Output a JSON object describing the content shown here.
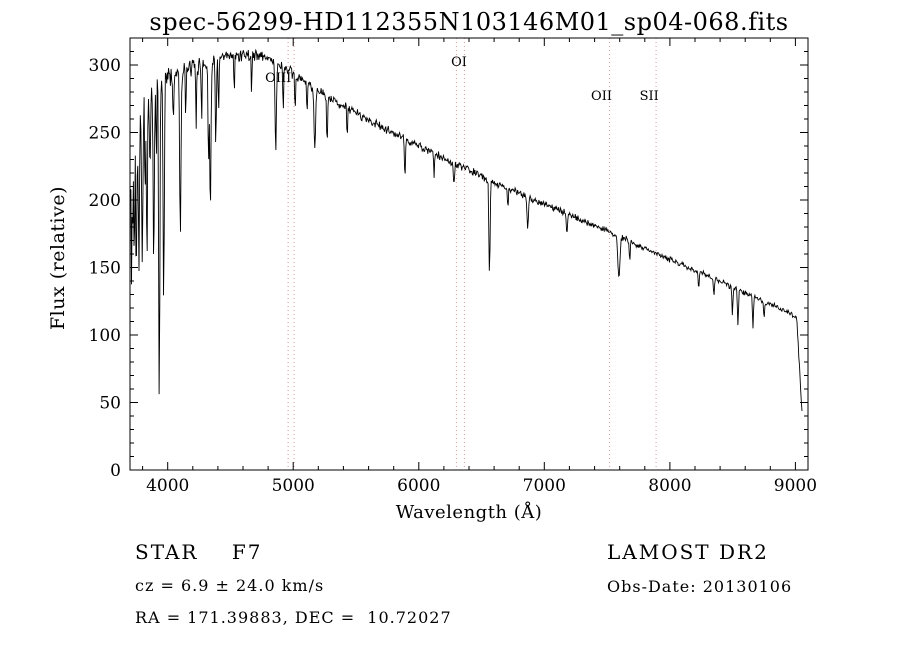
{
  "page": {
    "background": "#ffffff"
  },
  "chart_data": {
    "type": "line",
    "title": "spec-56299-HD112355N103146M01_sp04-068.fits",
    "xlabel": "Wavelength (Å)",
    "ylabel": "Flux (relative)",
    "series_name": "flux",
    "xlim": [
      3700,
      9100
    ],
    "ylim": [
      0,
      320
    ],
    "xticks": [
      4000,
      5000,
      6000,
      7000,
      8000,
      9000
    ],
    "yticks": [
      0,
      50,
      100,
      150,
      200,
      250,
      300
    ],
    "x_minor_step": 200,
    "y_minor_step": 10,
    "grid": false,
    "axis_color": "#000000",
    "line_color": "#000000",
    "marker_color": "#dd9999",
    "continuum": [
      [
        3700,
        205
      ],
      [
        3740,
        240
      ],
      [
        3780,
        258
      ],
      [
        3820,
        268
      ],
      [
        3860,
        278
      ],
      [
        3900,
        285
      ],
      [
        3950,
        290
      ],
      [
        4000,
        292
      ],
      [
        4100,
        295
      ],
      [
        4200,
        298
      ],
      [
        4320,
        301
      ],
      [
        4450,
        305
      ],
      [
        4600,
        308
      ],
      [
        4750,
        307
      ],
      [
        4850,
        303
      ],
      [
        4950,
        296
      ],
      [
        5050,
        290
      ],
      [
        5150,
        284
      ],
      [
        5250,
        277
      ],
      [
        5400,
        270
      ],
      [
        5550,
        262
      ],
      [
        5700,
        254
      ],
      [
        5850,
        247
      ],
      [
        6000,
        240
      ],
      [
        6150,
        233
      ],
      [
        6300,
        226
      ],
      [
        6450,
        220
      ],
      [
        6600,
        213
      ],
      [
        6750,
        207
      ],
      [
        6900,
        201
      ],
      [
        7050,
        195
      ],
      [
        7200,
        189
      ],
      [
        7350,
        183
      ],
      [
        7500,
        177
      ],
      [
        7650,
        171
      ],
      [
        7800,
        164
      ],
      [
        7950,
        158
      ],
      [
        8100,
        152
      ],
      [
        8250,
        146
      ],
      [
        8400,
        140
      ],
      [
        8550,
        133
      ],
      [
        8700,
        127
      ],
      [
        8850,
        121
      ],
      [
        8950,
        116
      ],
      [
        9010,
        112
      ],
      [
        9030,
        80
      ],
      [
        9050,
        45
      ]
    ],
    "absorption_lines": [
      [
        3712,
        70,
        3
      ],
      [
        3722,
        50,
        3
      ],
      [
        3734,
        85,
        3
      ],
      [
        3750,
        95,
        4
      ],
      [
        3771,
        100,
        4
      ],
      [
        3798,
        115,
        4
      ],
      [
        3820,
        60,
        3
      ],
      [
        3835,
        125,
        4
      ],
      [
        3860,
        70,
        3
      ],
      [
        3889,
        135,
        5
      ],
      [
        3910,
        60,
        3
      ],
      [
        3933,
        228,
        5
      ],
      [
        3968,
        160,
        5
      ],
      [
        4045,
        45,
        3
      ],
      [
        4101,
        120,
        5
      ],
      [
        4144,
        40,
        3
      ],
      [
        4227,
        50,
        3
      ],
      [
        4271,
        40,
        3
      ],
      [
        4325,
        70,
        4
      ],
      [
        4340,
        110,
        5
      ],
      [
        4383,
        60,
        4
      ],
      [
        4405,
        40,
        3
      ],
      [
        4530,
        30,
        3
      ],
      [
        4668,
        30,
        3
      ],
      [
        4861,
        70,
        5
      ],
      [
        4920,
        35,
        3
      ],
      [
        5015,
        30,
        3
      ],
      [
        5110,
        25,
        3
      ],
      [
        5172,
        45,
        6
      ],
      [
        5270,
        35,
        4
      ],
      [
        5430,
        25,
        3
      ],
      [
        5890,
        30,
        4
      ],
      [
        6122,
        20,
        3
      ],
      [
        6280,
        18,
        4
      ],
      [
        6563,
        68,
        5
      ],
      [
        6710,
        15,
        3
      ],
      [
        6867,
        22,
        6
      ],
      [
        7180,
        15,
        4
      ],
      [
        7594,
        32,
        8
      ],
      [
        7680,
        15,
        4
      ],
      [
        8230,
        12,
        4
      ],
      [
        8350,
        12,
        4
      ],
      [
        8498,
        20,
        4
      ],
      [
        8542,
        26,
        4
      ],
      [
        8662,
        24,
        4
      ],
      [
        8750,
        12,
        4
      ]
    ],
    "noise_profile": [
      [
        3700,
        30
      ],
      [
        3850,
        20
      ],
      [
        4000,
        12
      ],
      [
        4300,
        7
      ],
      [
        4700,
        6
      ],
      [
        5200,
        5
      ],
      [
        6000,
        4
      ],
      [
        7000,
        3.2
      ],
      [
        8000,
        2.8
      ],
      [
        9060,
        2.5
      ]
    ],
    "noise_seed": 42,
    "line_markers": [
      {
        "label": "OIII",
        "wavelengths": [
          4959,
          5007
        ],
        "label_x": 4880,
        "label_y": 82
      },
      {
        "label": "OI",
        "wavelengths": [
          6300,
          6363
        ],
        "label_x": 6320,
        "label_y": 66
      },
      {
        "label": "OII",
        "wavelengths": [
          7520
        ],
        "label_x": 7455,
        "label_y": 100
      },
      {
        "label": "SII",
        "wavelengths": [
          7890
        ],
        "label_x": 7835,
        "label_y": 100
      }
    ]
  },
  "annotations": {
    "object_type": "STAR    F7",
    "survey": "LAMOST DR2",
    "cz": "cz = 6.9 ± 24.0 km/s",
    "obs_date": "Obs-Date: 20130106",
    "coords": "RA = 171.39883, DEC =  10.72027"
  }
}
